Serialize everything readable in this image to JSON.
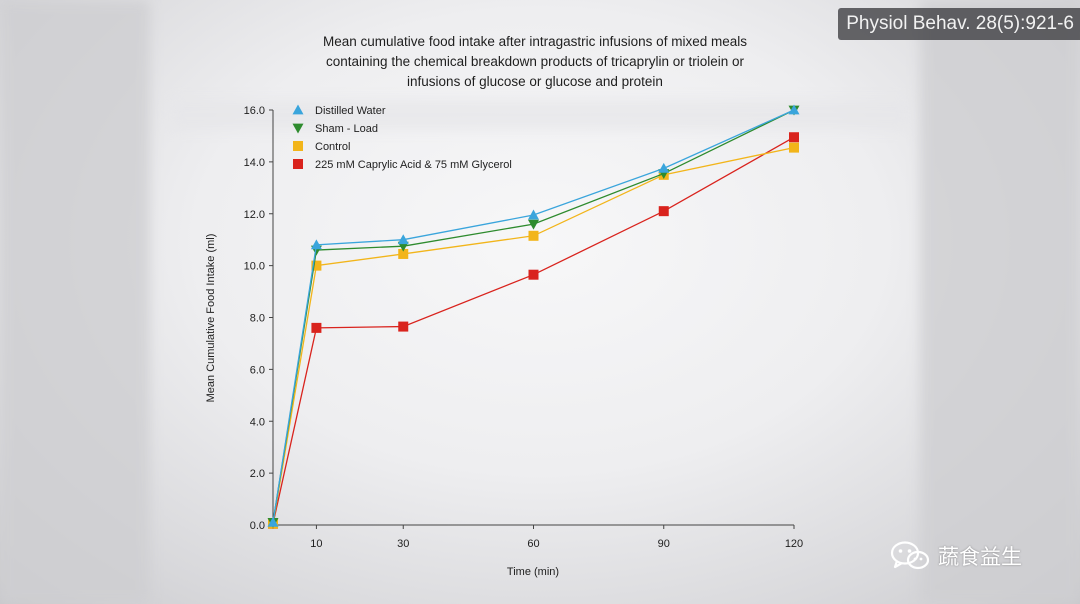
{
  "source_badge": "Physiol Behav. 28(5):921-6",
  "watermark": {
    "text": "蔬食益生",
    "icon": "wechat-icon",
    "color": "#ffffff"
  },
  "chart_data": {
    "type": "line",
    "title": [
      "Mean cumulative food intake after intragastric infusions of mixed meals",
      "containing the chemical breakdown products of tricaprylin or triolein or",
      "infusions of glucose or glucose and protein"
    ],
    "xlabel": "Time (min)",
    "ylabel": "Mean Cumulative Food Intake (ml)",
    "x": [
      0,
      10,
      30,
      60,
      90,
      120
    ],
    "x_tick_labels": [
      "",
      "10",
      "30",
      "60",
      "90",
      "120"
    ],
    "xlim": [
      0,
      120
    ],
    "ylim": [
      0,
      16
    ],
    "y_ticks": [
      0,
      2,
      4,
      6,
      8,
      10,
      12,
      14,
      16
    ],
    "y_tick_labels": [
      "0.0",
      "2.0",
      "4.0",
      "6.0",
      "8.0",
      "10.0",
      "12.0",
      "14.0",
      "16.0"
    ],
    "grid": false,
    "legend_position": "top-left",
    "series": [
      {
        "name": "Distilled Water",
        "color": "#3aa5dc",
        "marker": "triangle-up",
        "values": [
          0.1,
          10.8,
          11.0,
          11.95,
          13.75,
          16.0
        ]
      },
      {
        "name": "Sham - Load",
        "color": "#2e8b2e",
        "marker": "triangle-down",
        "values": [
          0.1,
          10.6,
          10.75,
          11.6,
          13.55,
          16.0
        ]
      },
      {
        "name": "Control",
        "color": "#f2b51a",
        "marker": "square",
        "values": [
          0.05,
          10.0,
          10.45,
          11.15,
          13.5,
          14.55
        ]
      },
      {
        "name": "225 mM Caprylic Acid & 75 mM Glycerol",
        "color": "#d9231d",
        "marker": "square",
        "values": [
          0.05,
          7.6,
          7.65,
          9.65,
          12.1,
          14.95
        ]
      }
    ]
  }
}
